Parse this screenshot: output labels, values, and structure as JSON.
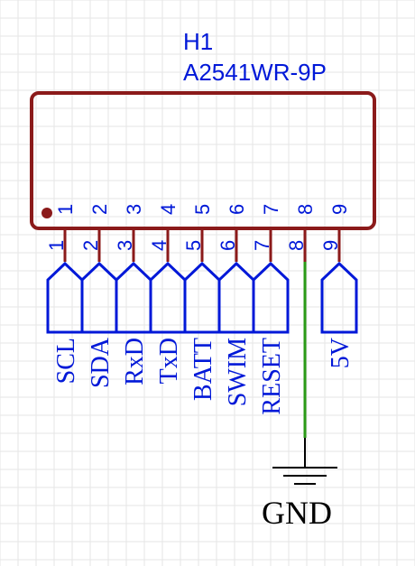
{
  "component": {
    "designator": "H1",
    "part_number": "A2541WR-9P",
    "pins": [
      {
        "number": "1",
        "net": "SCL"
      },
      {
        "number": "2",
        "net": "SDA"
      },
      {
        "number": "3",
        "net": "RxD"
      },
      {
        "number": "4",
        "net": "TxD"
      },
      {
        "number": "5",
        "net": "BATT"
      },
      {
        "number": "6",
        "net": "SWIM"
      },
      {
        "number": "7",
        "net": "RESET"
      },
      {
        "number": "8",
        "net": ""
      },
      {
        "number": "9",
        "net": "5V"
      }
    ]
  },
  "ground": {
    "label": "GND",
    "pin": "8"
  },
  "colors": {
    "grid": "#e6e6e6",
    "body": "#8b1a1a",
    "pin_text": "#0018d8",
    "netlabel": "#0018d8",
    "wire": "#2a9a16",
    "ground_text": "#000000"
  }
}
